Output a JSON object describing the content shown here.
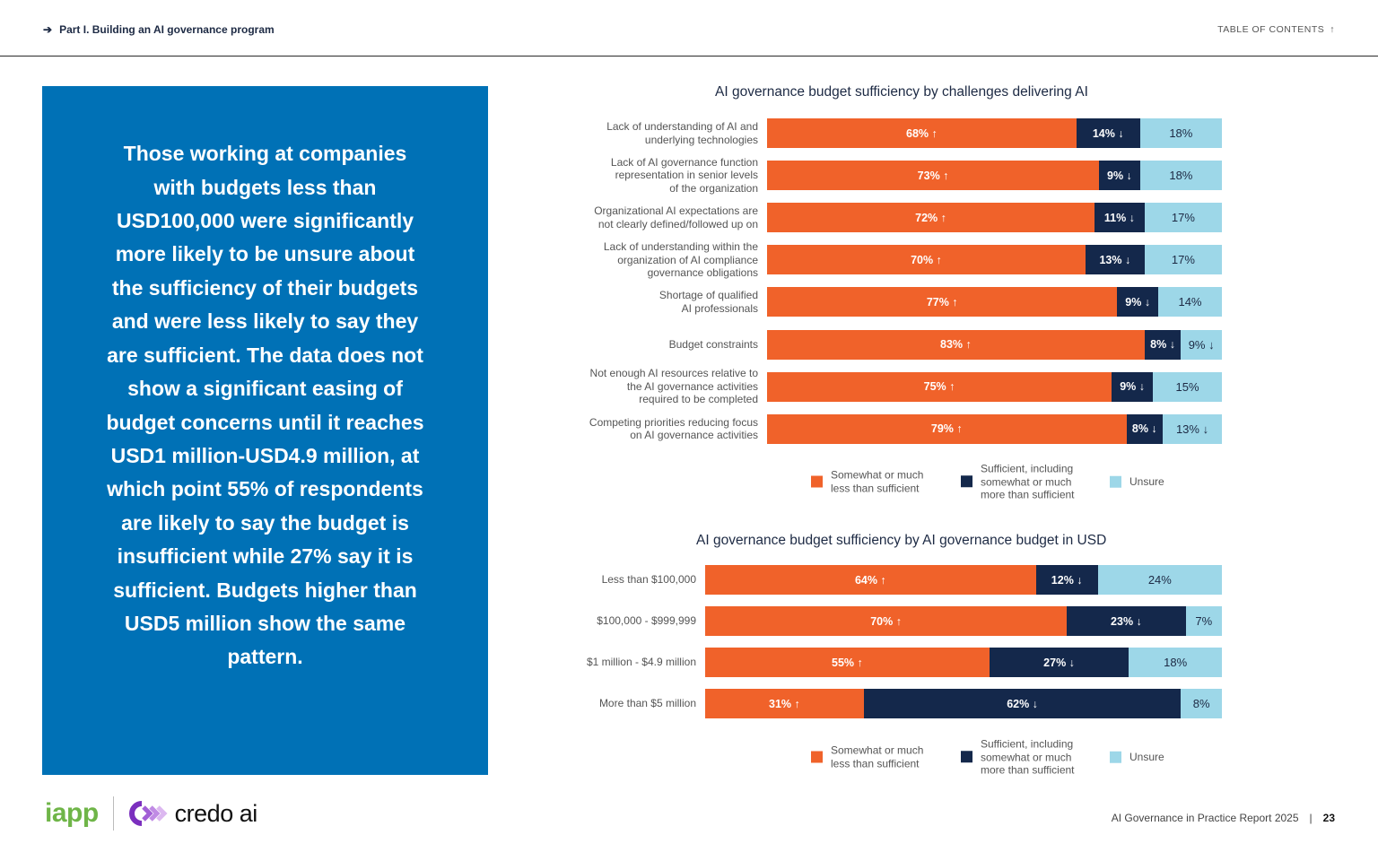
{
  "header": {
    "breadcrumb": "Part I. Building an AI governance program",
    "toc_label": "TABLE OF CONTENTS",
    "toc_icon": "arrow-up-icon"
  },
  "callout": {
    "text": "Those working at companies with budgets less than USD100,000 were significantly more likely to be unsure about the sufficiency of their budgets and were less likely to say they are sufficient. The data does not show a significant easing of budget concerns until it reaches USD1 million-USD4.9 million, at which point 55% of respondents are likely to say the budget is insufficient while 27% say it is sufficient. Budgets higher than USD5 million show the same pattern."
  },
  "colors": {
    "insufficient": "#f0622a",
    "sufficient": "#14284b",
    "unsure": "#9dd7e8",
    "panel": "#0071b6"
  },
  "chart_data": [
    {
      "type": "bar",
      "orientation": "horizontal-stacked-100",
      "title": "AI governance budget sufficiency by challenges delivering AI",
      "categories": [
        "Lack of understanding of AI and underlying technologies",
        "Lack of AI governance function representation in senior levels of the organization",
        "Organizational AI expectations are not clearly defined/followed up on",
        "Lack of understanding within the organization of AI compliance governance obligations",
        "Shortage of qualified AI professionals",
        "Budget constraints",
        "Not enough AI resources relative to the AI governance activities required to be completed",
        "Competing priorities reducing focus on AI governance activities"
      ],
      "category_lines": [
        [
          "Lack of understanding of AI and",
          "underlying technologies"
        ],
        [
          "Lack of AI governance function",
          "representation in senior levels",
          "of the organization"
        ],
        [
          "Organizational AI expectations are",
          "not clearly defined/followed up on"
        ],
        [
          "Lack of understanding within the",
          "organization of AI compliance",
          "governance obligations"
        ],
        [
          "Shortage of qualified",
          "AI professionals"
        ],
        [
          "Budget constraints"
        ],
        [
          "Not enough AI resources relative to",
          "the AI governance activities",
          "required to be completed"
        ],
        [
          "Competing priorities reducing focus",
          "on AI governance activities"
        ]
      ],
      "series": [
        {
          "name": "Somewhat or much less than sufficient",
          "values": [
            68,
            73,
            72,
            70,
            77,
            83,
            75,
            79
          ],
          "markers": [
            "up",
            "up",
            "up",
            "up",
            "up",
            "up",
            "up",
            "up"
          ]
        },
        {
          "name": "Sufficient, including somewhat or much more than sufficient",
          "values": [
            14,
            9,
            11,
            13,
            9,
            8,
            9,
            8
          ],
          "markers": [
            "down",
            "down",
            "down",
            "down",
            "down",
            "down",
            "down",
            "down"
          ]
        },
        {
          "name": "Unsure",
          "values": [
            18,
            18,
            17,
            17,
            14,
            9,
            15,
            13
          ],
          "markers": [
            "",
            "",
            "",
            "",
            "",
            "down",
            "",
            "down"
          ]
        }
      ],
      "xlim": [
        0,
        100
      ],
      "unit": "%",
      "legend": {
        "placement": "bottom",
        "items": [
          [
            "Somewhat or much",
            "less than sufficient"
          ],
          [
            "Sufficient, including",
            "somewhat or much",
            "more than sufficient"
          ],
          [
            "Unsure"
          ]
        ]
      }
    },
    {
      "type": "bar",
      "orientation": "horizontal-stacked-100",
      "title": "AI governance budget sufficiency by AI governance budget in USD",
      "categories": [
        "Less than $100,000",
        "$100,000 - $999,999",
        "$1 million - $4.9 million",
        "More than $5 million"
      ],
      "category_lines": [
        [
          "Less than $100,000"
        ],
        [
          "$100,000 - $999,999"
        ],
        [
          "$1 million - $4.9 million"
        ],
        [
          "More than $5 million"
        ]
      ],
      "series": [
        {
          "name": "Somewhat or much less than sufficient",
          "values": [
            64,
            70,
            55,
            31
          ],
          "markers": [
            "up",
            "up",
            "up",
            "up"
          ]
        },
        {
          "name": "Sufficient, including somewhat or much more than sufficient",
          "values": [
            12,
            23,
            27,
            62
          ],
          "markers": [
            "down",
            "down",
            "down",
            "down"
          ]
        },
        {
          "name": "Unsure",
          "values": [
            24,
            7,
            18,
            8
          ],
          "markers": [
            "",
            "",
            "",
            ""
          ]
        }
      ],
      "xlim": [
        0,
        100
      ],
      "unit": "%",
      "legend": {
        "placement": "bottom",
        "items": [
          [
            "Somewhat or much",
            "less than sufficient"
          ],
          [
            "Sufficient, including",
            "somewhat or much",
            "more than sufficient"
          ],
          [
            "Unsure"
          ]
        ]
      }
    }
  ],
  "footer": {
    "logo_left": "iapp",
    "logo_right": "credo ai",
    "report": "AI Governance in Practice Report 2025",
    "separator": "|",
    "page": "23"
  }
}
